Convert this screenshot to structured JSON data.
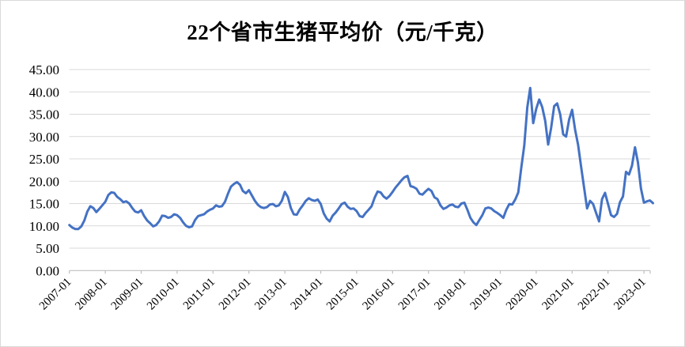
{
  "chart_data": {
    "type": "line",
    "title": "22个省市生猪平均价（元/千克）",
    "xlabel": "",
    "ylabel": "",
    "legend": "none",
    "grid": "horizontal",
    "ylim": [
      0,
      45
    ],
    "y_ticks": [
      0,
      5,
      10,
      15,
      20,
      25,
      30,
      35,
      40,
      45
    ],
    "y_tick_format": "two-decimals",
    "x_tick_labels": [
      "2007-01",
      "2008-01",
      "2009-01",
      "2010-01",
      "2011-01",
      "2012-01",
      "2013-01",
      "2014-01",
      "2015-01",
      "2016-01",
      "2017-01",
      "2018-01",
      "2019-01",
      "2020-01",
      "2021-01",
      "2022-01",
      "2023-01"
    ],
    "colors": {
      "line": "#4472C4",
      "grid": "#D9D9D9",
      "axis": "#BFBFBF",
      "text": "#000000",
      "frame": "#D9D9D9"
    },
    "series": [
      {
        "name": "22个省市生猪平均价",
        "unit": "元/千克",
        "frequency": "monthly",
        "x_start": "2007-01",
        "x_end": "2023-04",
        "values": [
          10.2,
          9.6,
          9.3,
          9.3,
          9.9,
          11.2,
          13.2,
          14.4,
          14.0,
          13.1,
          13.8,
          14.6,
          15.4,
          16.9,
          17.5,
          17.4,
          16.5,
          16.0,
          15.3,
          15.5,
          15.0,
          14.0,
          13.2,
          13.0,
          13.5,
          12.2,
          11.2,
          10.6,
          9.9,
          10.2,
          11.0,
          12.3,
          12.2,
          11.8,
          12.0,
          12.6,
          12.4,
          11.8,
          10.8,
          10.0,
          9.7,
          9.9,
          11.3,
          12.2,
          12.4,
          12.6,
          13.2,
          13.6,
          13.9,
          14.6,
          14.3,
          14.4,
          15.4,
          17.2,
          18.8,
          19.4,
          19.8,
          19.2,
          17.8,
          17.3,
          18.0,
          16.8,
          15.6,
          14.7,
          14.2,
          14.0,
          14.2,
          14.8,
          14.9,
          14.4,
          14.6,
          15.6,
          17.6,
          16.5,
          14.0,
          12.6,
          12.5,
          13.7,
          14.6,
          15.6,
          16.2,
          15.8,
          15.6,
          15.9,
          14.9,
          12.8,
          11.6,
          11.0,
          12.3,
          13.0,
          13.9,
          14.9,
          15.2,
          14.3,
          13.8,
          13.9,
          13.3,
          12.2,
          12.0,
          12.9,
          13.6,
          14.4,
          16.3,
          17.7,
          17.5,
          16.6,
          16.1,
          16.7,
          17.6,
          18.6,
          19.4,
          20.2,
          20.9,
          21.2,
          18.9,
          18.7,
          18.3,
          17.2,
          17.0,
          17.7,
          18.3,
          17.8,
          16.4,
          16.0,
          14.6,
          13.8,
          14.1,
          14.6,
          14.8,
          14.3,
          14.2,
          15.0,
          15.2,
          13.6,
          11.8,
          10.8,
          10.2,
          11.3,
          12.4,
          13.9,
          14.1,
          13.9,
          13.3,
          12.9,
          12.4,
          11.8,
          13.6,
          14.9,
          14.8,
          15.9,
          17.5,
          23.0,
          28.0,
          36.5,
          40.9,
          33.0,
          36.2,
          38.3,
          36.6,
          33.5,
          28.2,
          32.0,
          36.8,
          37.4,
          35.0,
          30.5,
          30.0,
          33.8,
          36.0,
          31.5,
          28.1,
          23.3,
          18.6,
          13.9,
          15.6,
          14.9,
          12.9,
          11.0,
          16.0,
          17.4,
          14.9,
          12.4,
          12.0,
          12.7,
          15.3,
          16.6,
          22.1,
          21.5,
          23.5,
          27.6,
          24.2,
          18.4,
          15.2,
          15.5,
          15.7,
          15.1
        ]
      }
    ]
  }
}
